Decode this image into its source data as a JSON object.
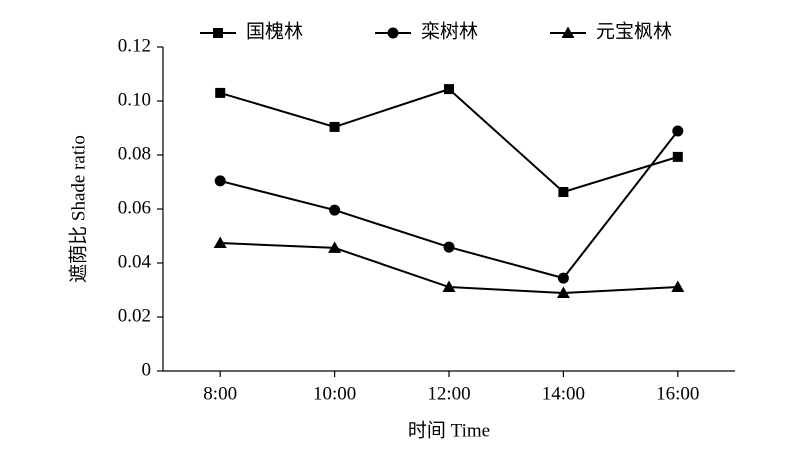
{
  "chart_data": {
    "type": "line",
    "x_label": "时间 Time",
    "y_label": "遮荫比 Shade ratio",
    "categories": [
      "8:00",
      "10:00",
      "12:00",
      "14:00",
      "16:00"
    ],
    "series": [
      {
        "name": "国槐林",
        "color": "#000000",
        "marker": "square",
        "values": [
          0.103,
          0.0904,
          0.1044,
          0.0663,
          0.0793
        ]
      },
      {
        "name": "栾树林",
        "color": "#000000",
        "marker": "circle",
        "values": [
          0.0704,
          0.0596,
          0.0459,
          0.0344,
          0.0889
        ]
      },
      {
        "name": "元宝枫林",
        "color": "#000000",
        "marker": "triangle",
        "values": [
          0.0474,
          0.0456,
          0.0311,
          0.0289,
          0.0311
        ]
      }
    ],
    "ylim": [
      0,
      0.12
    ],
    "yticks": [
      0,
      0.02,
      0.04,
      0.06,
      0.08,
      {
        "value": 0.1,
        "label": "0.10"
      },
      0.12
    ],
    "grid": false,
    "legend": "top"
  }
}
